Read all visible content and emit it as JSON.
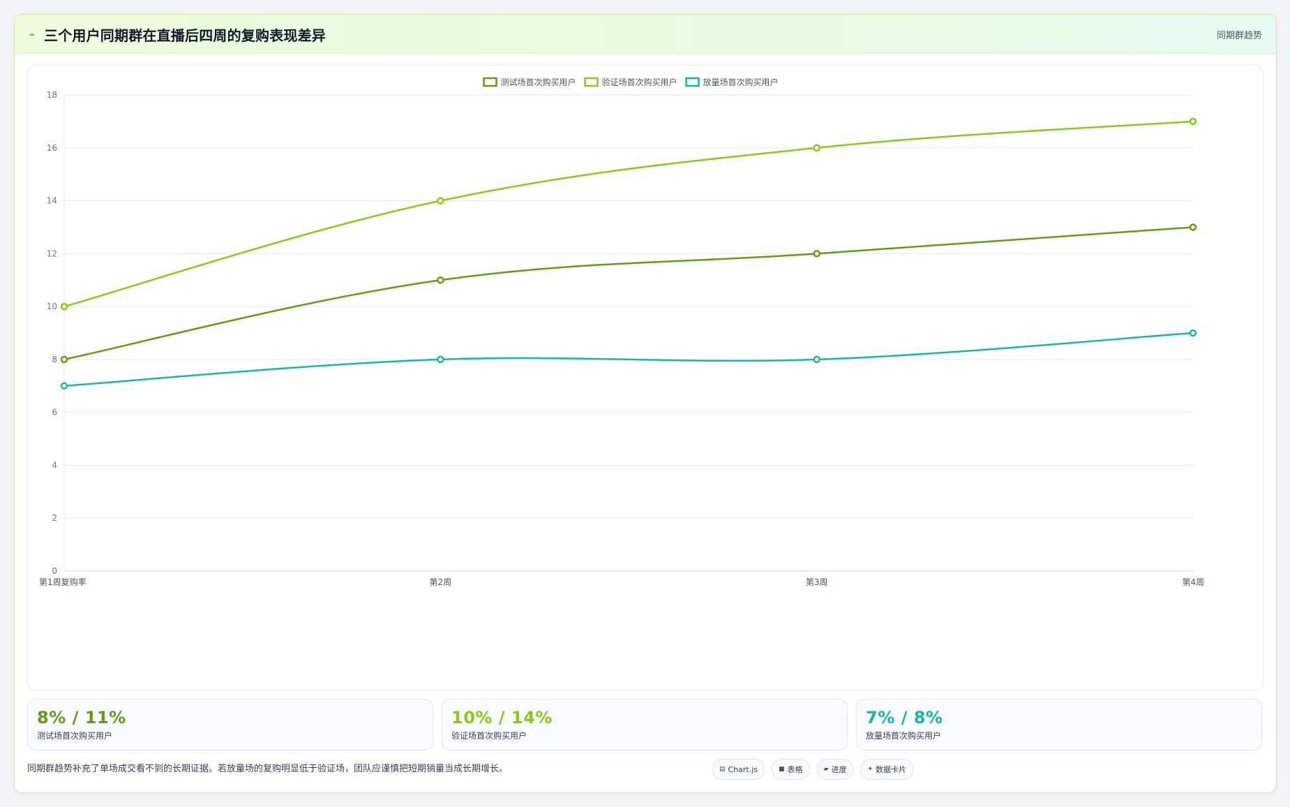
{
  "header": {
    "icon": "trend-line-icon",
    "title": "三个用户同期群在直播后四周的复购表现差异",
    "tag": "同期群趋势"
  },
  "chart_data": {
    "type": "line",
    "categories": [
      "第1周复购率",
      "第2周",
      "第3周",
      "第4周"
    ],
    "series": [
      {
        "name": "测试场首次购买用户",
        "values": [
          8,
          11,
          12,
          13
        ],
        "color": "#5f9e10"
      },
      {
        "name": "验证场首次购买用户",
        "values": [
          10,
          14,
          16,
          17
        ],
        "color": "#84cc16"
      },
      {
        "name": "放量场首次购买用户",
        "values": [
          7,
          8,
          8,
          9
        ],
        "color": "#14b8a6"
      }
    ],
    "ylim": [
      0,
      18
    ],
    "yticks": [
      0,
      2,
      4,
      6,
      8,
      10,
      12,
      14,
      16,
      18
    ],
    "grid": true,
    "legend": "top-center",
    "title": "",
    "xlabel": "",
    "ylabel": ""
  },
  "stats": [
    {
      "value": "8% / 11%",
      "label": "测试场首次购买用户",
      "color": "#5f9e10"
    },
    {
      "value": "10% / 14%",
      "label": "验证场首次购买用户",
      "color": "#84cc16"
    },
    {
      "value": "7% / 8%",
      "label": "放量场首次购买用户",
      "color": "#14b8a6"
    }
  ],
  "footer": {
    "note": "同期群趋势补充了单场成交看不到的长期证据。若放量场的复购明显低于验证场，团队应谨慎把短期销量当成长期增长。"
  },
  "pills": [
    {
      "icon": "chart-icon",
      "glyph": "▤",
      "label": "Chart.js"
    },
    {
      "icon": "table-icon",
      "glyph": "■",
      "label": "表格"
    },
    {
      "icon": "progress-icon",
      "glyph": "▰",
      "label": "进度"
    },
    {
      "icon": "sparkle-icon",
      "glyph": "✦",
      "label": "数据卡片"
    }
  ]
}
